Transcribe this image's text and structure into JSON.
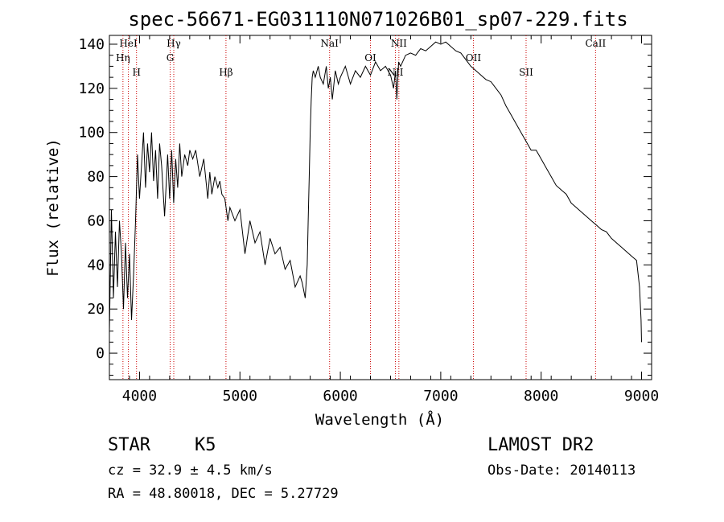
{
  "chart_data": {
    "type": "line",
    "title": "spec-56671-EG031110N071026B01_sp07-229.fits",
    "xlabel": "Wavelength (Å)",
    "ylabel": "Flux (relative)",
    "xlim": [
      3700,
      9100
    ],
    "ylim": [
      -12,
      144
    ],
    "xticks": [
      4000,
      5000,
      6000,
      7000,
      8000,
      9000
    ],
    "yticks": [
      0,
      20,
      40,
      60,
      80,
      100,
      120,
      140
    ],
    "grid": false,
    "line_color": "#000000",
    "marker_color": "#cc0000",
    "series": [
      {
        "x": [
          3700,
          3720,
          3740,
          3760,
          3780,
          3800,
          3820,
          3840,
          3860,
          3880,
          3900,
          3920,
          3940,
          3960,
          3980,
          4000,
          4020,
          4040,
          4060,
          4080,
          4100,
          4120,
          4140,
          4160,
          4180,
          4200,
          4220,
          4250,
          4280,
          4300,
          4320,
          4340,
          4360,
          4380,
          4400,
          4420,
          4450,
          4480,
          4500,
          4530,
          4560,
          4600,
          4640,
          4680,
          4700,
          4720,
          4750,
          4780,
          4800,
          4820,
          4850,
          4880,
          4900,
          4950,
          5000,
          5050,
          5100,
          5150,
          5200,
          5250,
          5300,
          5350,
          5400,
          5450,
          5500,
          5550,
          5600,
          5620,
          5650,
          5670,
          5680,
          5690,
          5700,
          5710,
          5720,
          5730,
          5750,
          5780,
          5800,
          5830,
          5860,
          5880,
          5900,
          5920,
          5950,
          5980,
          6000,
          6050,
          6100,
          6150,
          6200,
          6250,
          6300,
          6350,
          6400,
          6450,
          6500,
          6530,
          6550,
          6563,
          6580,
          6600,
          6650,
          6700,
          6750,
          6800,
          6850,
          6900,
          6950,
          7000,
          7050,
          7100,
          7150,
          7200,
          7250,
          7300,
          7350,
          7400,
          7450,
          7500,
          7550,
          7600,
          7650,
          7700,
          7750,
          7800,
          7850,
          7900,
          7950,
          8000,
          8050,
          8100,
          8150,
          8200,
          8250,
          8300,
          8350,
          8400,
          8450,
          8500,
          8550,
          8600,
          8650,
          8700,
          8750,
          8800,
          8850,
          8900,
          8950,
          8980,
          8995,
          9000
        ],
        "y": [
          10,
          65,
          25,
          55,
          30,
          60,
          45,
          20,
          50,
          25,
          45,
          15,
          35,
          60,
          90,
          70,
          85,
          100,
          75,
          95,
          82,
          100,
          78,
          92,
          70,
          95,
          85,
          62,
          90,
          70,
          92,
          68,
          88,
          75,
          95,
          80,
          90,
          85,
          92,
          88,
          92,
          80,
          88,
          70,
          82,
          72,
          80,
          75,
          78,
          72,
          70,
          60,
          66,
          60,
          65,
          45,
          60,
          50,
          55,
          40,
          52,
          45,
          48,
          38,
          42,
          30,
          35,
          32,
          25,
          40,
          60,
          80,
          100,
          115,
          125,
          128,
          125,
          130,
          125,
          122,
          130,
          120,
          125,
          115,
          128,
          122,
          125,
          130,
          122,
          128,
          125,
          130,
          126,
          132,
          128,
          130,
          126,
          120,
          128,
          115,
          132,
          130,
          135,
          136,
          135,
          138,
          137,
          139,
          141,
          140,
          141,
          139,
          137,
          136,
          133,
          130,
          128,
          126,
          124,
          123,
          120,
          117,
          112,
          108,
          104,
          100,
          96,
          92,
          92,
          88,
          84,
          80,
          76,
          74,
          72,
          68,
          66,
          64,
          62,
          60,
          58,
          56,
          55,
          52,
          50,
          48,
          46,
          44,
          42,
          30,
          15,
          5
        ]
      }
    ],
    "markers": [
      {
        "label": "HeI",
        "x": 3889
      },
      {
        "label": "Hη",
        "x": 3835
      },
      {
        "label": "H",
        "x": 3970
      },
      {
        "label": "Hγ",
        "x": 4341
      },
      {
        "label": "G",
        "x": 4305
      },
      {
        "label": "Hβ",
        "x": 4861
      },
      {
        "label": "NaI",
        "x": 5893
      },
      {
        "label": "OI",
        "x": 6300
      },
      {
        "label": "NII",
        "x": 6548
      },
      {
        "label": "NII",
        "x": 6583
      },
      {
        "label": "OII",
        "x": 7325
      },
      {
        "label": "SII",
        "x": 7850
      },
      {
        "label": "CaII",
        "x": 8542
      }
    ]
  },
  "info": {
    "class_label": "STAR",
    "subclass": "K5",
    "cz": "cz = 32.9 ± 4.5 km/s",
    "coords": "RA =  48.80018, DEC =   5.27729",
    "survey": "LAMOST DR2",
    "obs_date": "Obs-Date: 20140113"
  }
}
